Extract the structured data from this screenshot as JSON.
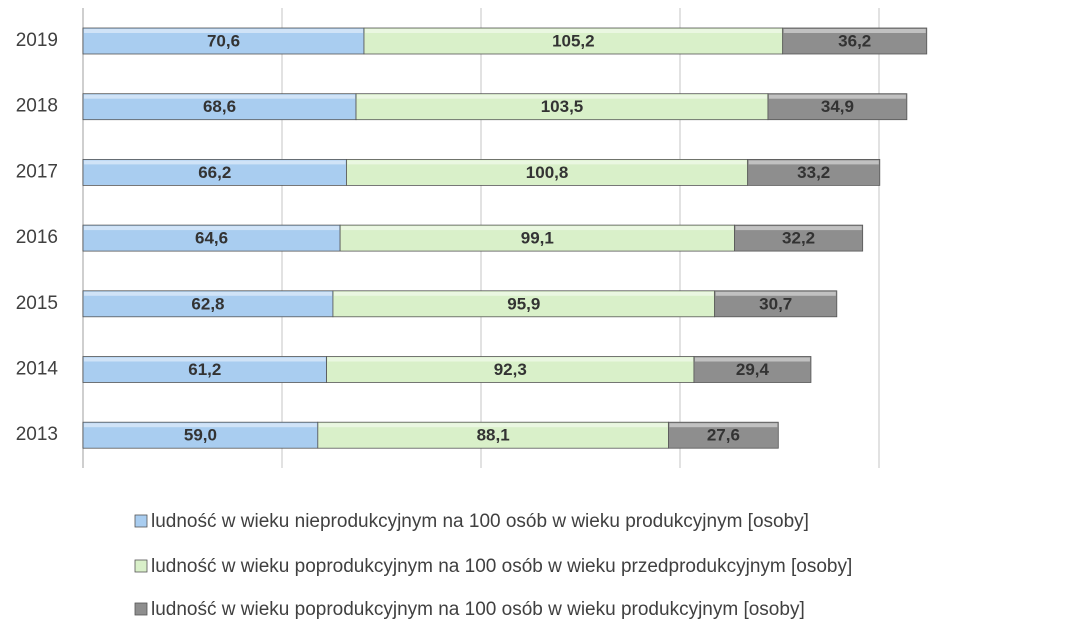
{
  "chart_data": {
    "type": "stacked-bar-horizontal",
    "categories": [
      "2013",
      "2014",
      "2015",
      "2016",
      "2017",
      "2018",
      "2019"
    ],
    "series": [
      {
        "name": "ludność w wieku nieprodukcyjnym na 100 osób w wieku produkcyjnym [osoby]",
        "color": "#a9cdf0",
        "values": [
          59.0,
          61.2,
          62.8,
          64.6,
          66.2,
          68.6,
          70.6
        ],
        "value_labels": [
          "59,0",
          "61,2",
          "62,8",
          "64,6",
          "66,2",
          "68,6",
          "70,6"
        ]
      },
      {
        "name": "ludność w wieku poprodukcyjnym na 100 osób w wieku przedprodukcyjnym [osoby]",
        "color": "#d9f0c9",
        "values": [
          88.1,
          92.3,
          95.9,
          99.1,
          100.8,
          103.5,
          105.2
        ],
        "value_labels": [
          "88,1",
          "92,3",
          "95,9",
          "99,1",
          "100,8",
          "103,5",
          "105,2"
        ]
      },
      {
        "name": "ludność w wieku poprodukcyjnym na 100 osób w wieku produkcyjnym [osoby]",
        "color": "#8e8e8e",
        "values": [
          27.6,
          29.4,
          30.7,
          32.2,
          33.2,
          34.9,
          36.2
        ],
        "value_labels": [
          "27,6",
          "29,4",
          "30,7",
          "32,2",
          "33,2",
          "34,9",
          "36,2"
        ]
      }
    ],
    "xlim": [
      0,
      240
    ],
    "xticks": [
      0,
      50,
      100,
      150,
      200
    ],
    "grid": true
  }
}
